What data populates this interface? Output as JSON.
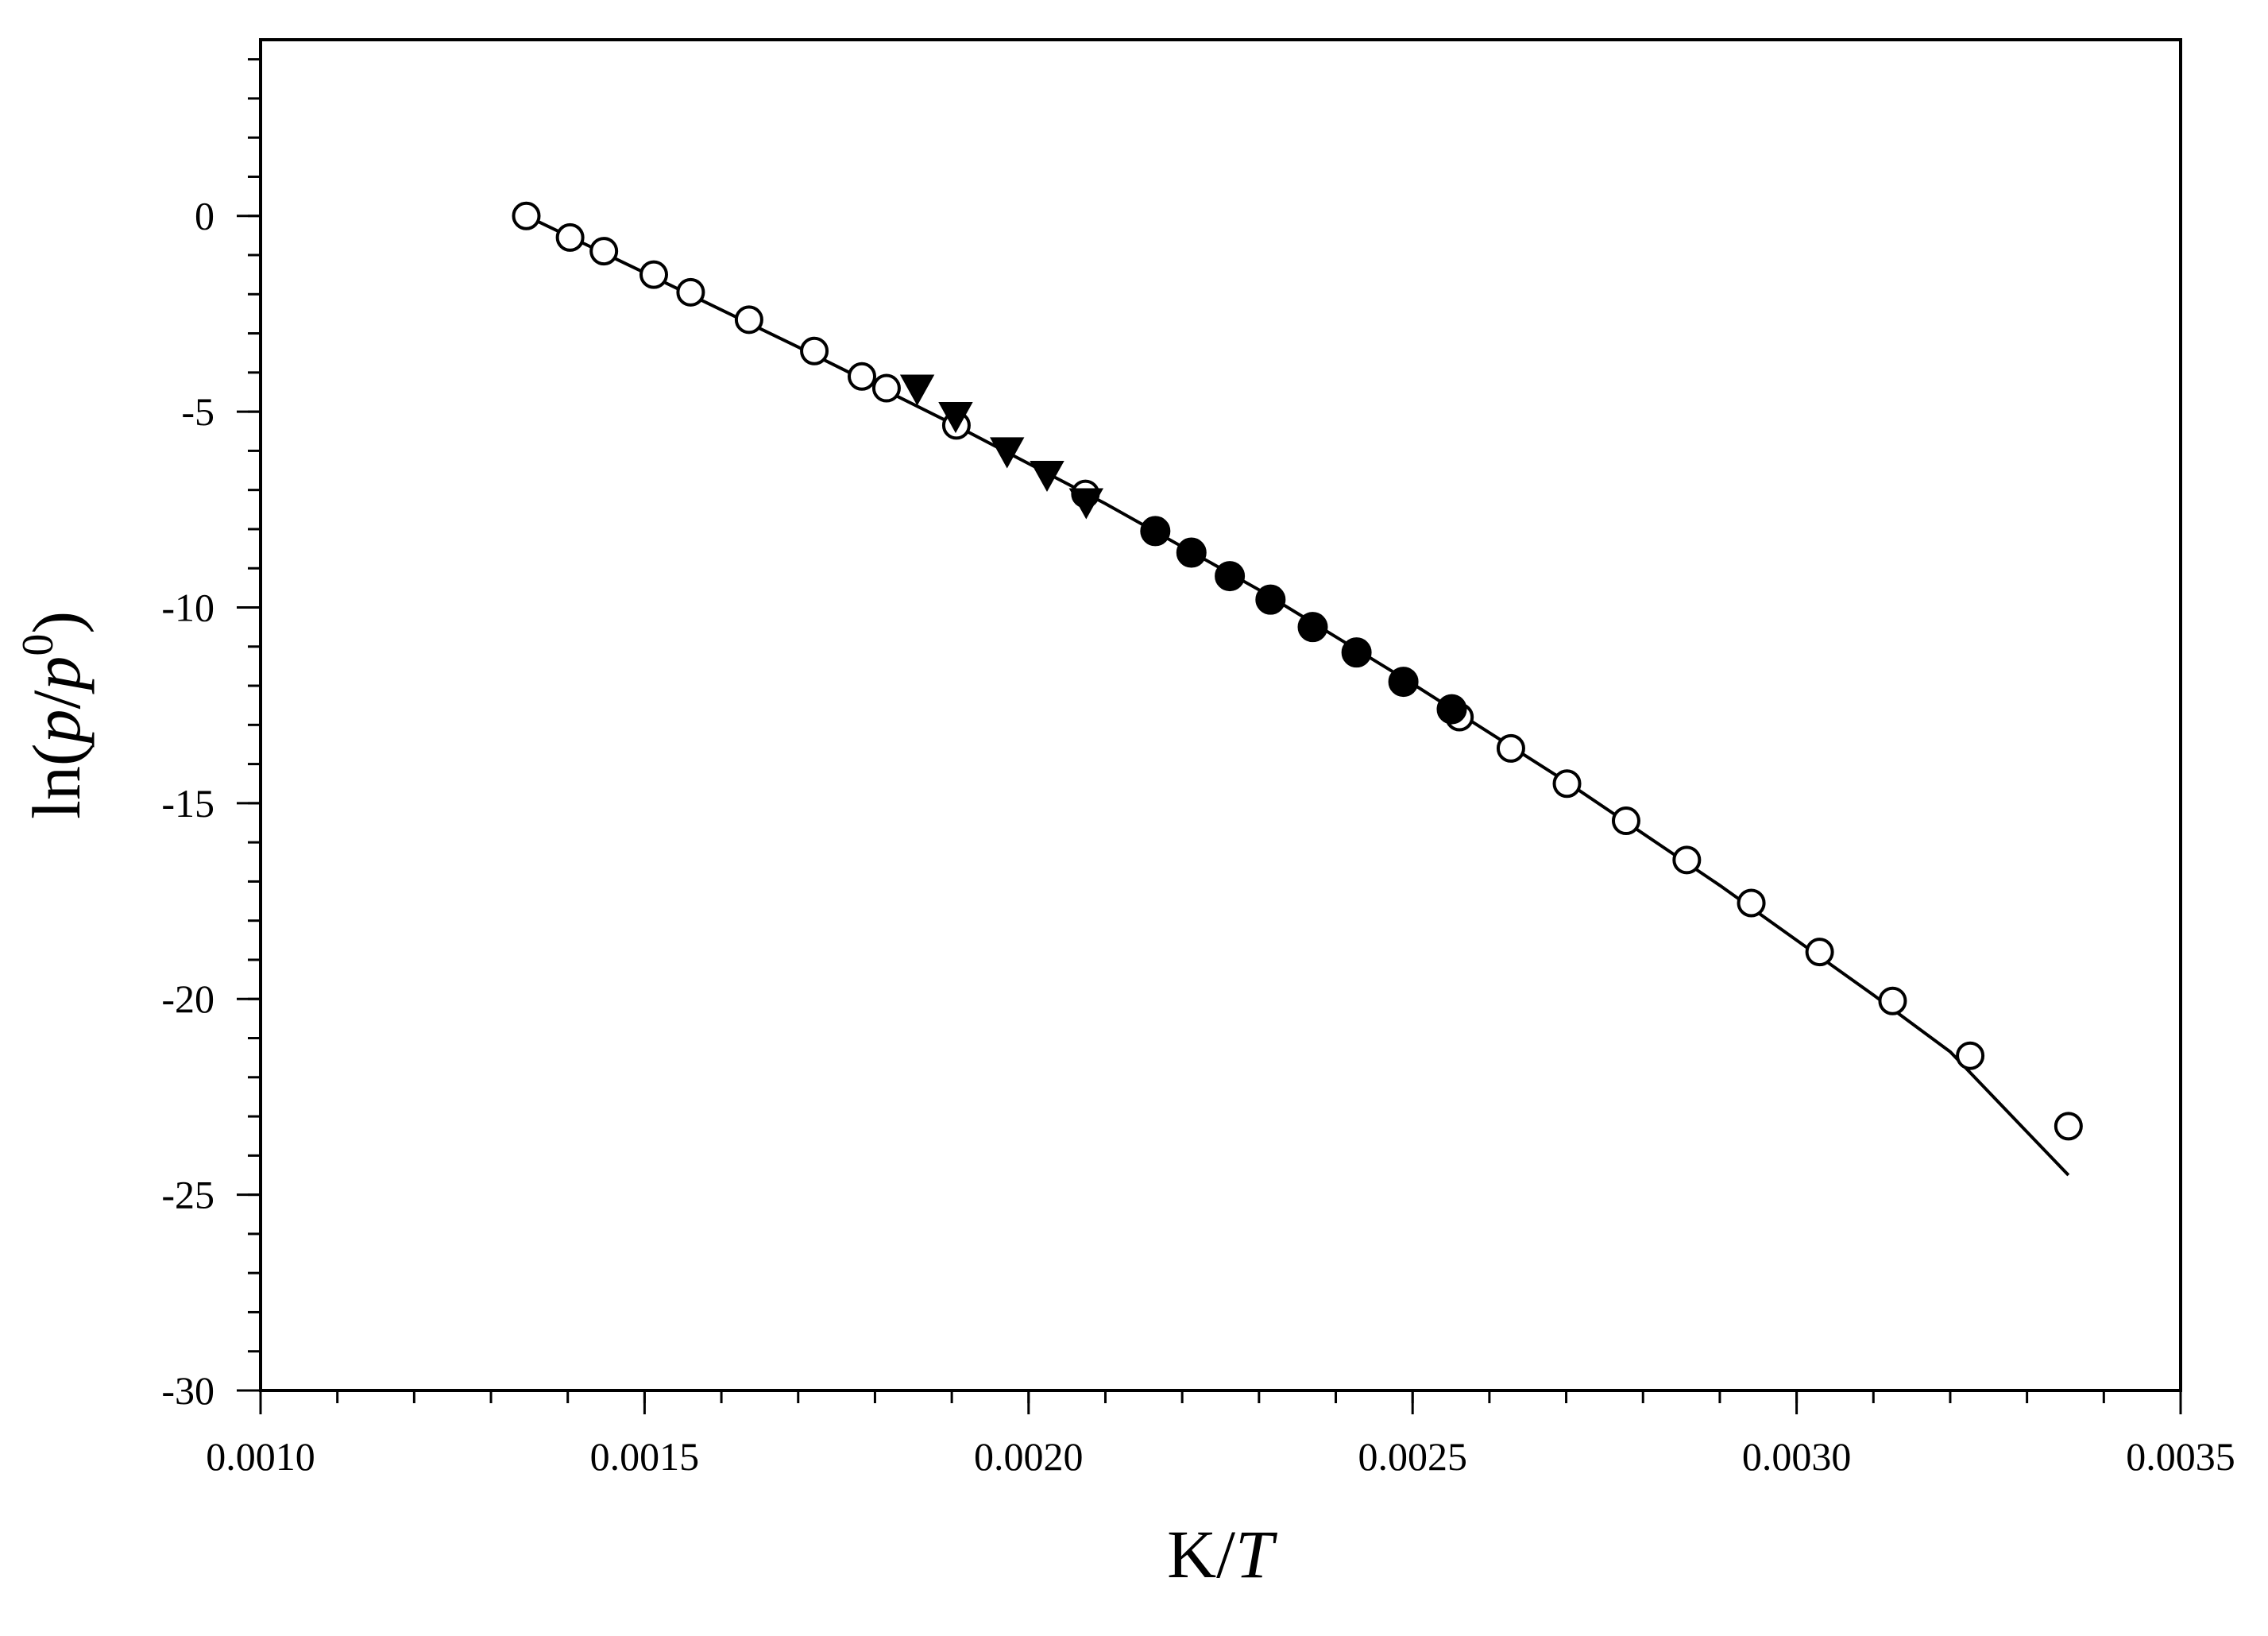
{
  "chart_data": {
    "type": "scatter",
    "xlabel_parts": [
      "K/",
      "T"
    ],
    "ylabel_parts": [
      "ln(",
      "p",
      "/",
      "p",
      "0",
      ")"
    ],
    "xlim": [
      0.001,
      0.0035
    ],
    "ylim": [
      -30,
      4.5
    ],
    "x_ticks": [
      0.001,
      0.0015,
      0.002,
      0.0025,
      0.003,
      0.0035
    ],
    "x_tick_labels": [
      "0.0010",
      "0.0015",
      "0.0020",
      "0.0025",
      "0.0030",
      "0.0035"
    ],
    "x_minor_step": 0.0001,
    "y_ticks": [
      0,
      -5,
      -10,
      -15,
      -20,
      -25,
      -30
    ],
    "y_tick_labels": [
      "0",
      "-5",
      "-10",
      "-15",
      "-20",
      "-25",
      "-30"
    ],
    "y_minor_step": 1,
    "grid": false,
    "series": [
      {
        "marker": "open-circle",
        "x": [
          0.001346,
          0.001403,
          0.001447,
          0.001512,
          0.00156,
          0.001636,
          0.001721,
          0.001783,
          0.001815,
          0.001906,
          0.002074,
          0.002561,
          0.002628,
          0.002701,
          0.002778,
          0.002857,
          0.002941,
          0.00303,
          0.003125,
          0.003226,
          0.003354
        ],
        "y": [
          0.0,
          -0.55,
          -0.9,
          -1.5,
          -1.95,
          -2.65,
          -3.45,
          -4.1,
          -4.4,
          -5.35,
          -7.1,
          -12.8,
          -13.6,
          -14.5,
          -15.45,
          -16.45,
          -17.55,
          -18.8,
          -20.05,
          -21.45,
          -23.25
        ]
      },
      {
        "marker": "filled-triangle-down",
        "x": [
          0.001855,
          0.001905,
          0.001972,
          0.002024,
          0.002075
        ],
        "y": [
          -4.4,
          -5.1,
          -6.0,
          -6.6,
          -7.3
        ]
      },
      {
        "marker": "filled-circle",
        "x": [
          0.002165,
          0.002212,
          0.002262,
          0.002315,
          0.00237,
          0.002427,
          0.002488,
          0.002551
        ],
        "y": [
          -8.05,
          -8.6,
          -9.2,
          -9.8,
          -10.5,
          -11.15,
          -11.9,
          -12.6
        ]
      }
    ],
    "fit_line": {
      "x": [
        0.001346,
        0.0015,
        0.0017,
        0.0019,
        0.0021,
        0.0023,
        0.0025,
        0.0027,
        0.0029,
        0.0031,
        0.0032,
        0.003354
      ],
      "y": [
        0.0,
        -1.45,
        -3.35,
        -5.3,
        -7.35,
        -9.55,
        -11.95,
        -14.45,
        -17.1,
        -19.9,
        -21.35,
        -24.5
      ]
    }
  }
}
